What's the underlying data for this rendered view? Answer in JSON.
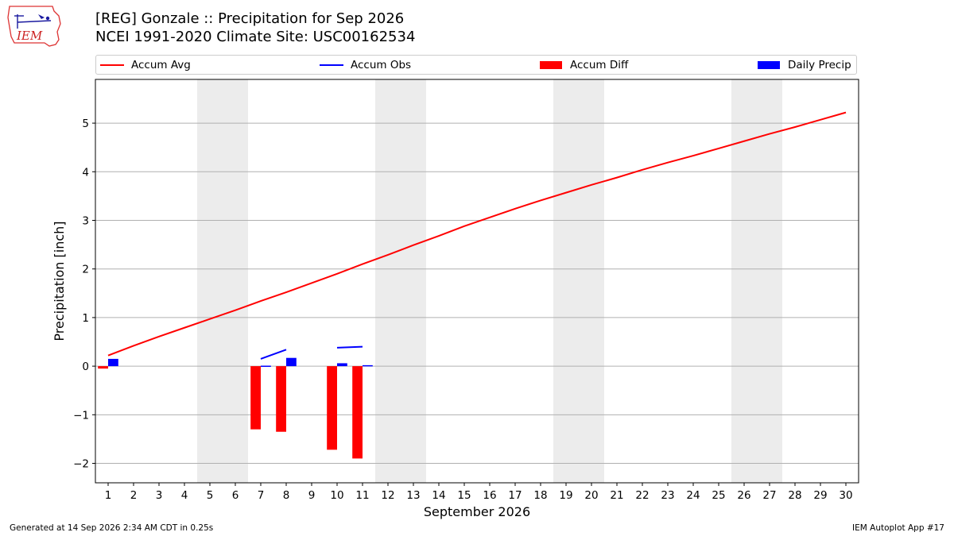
{
  "logo": {
    "text": "IEM"
  },
  "title_lines": [
    "[REG] Gonzale :: Precipitation for Sep 2026",
    "NCEI 1991-2020 Climate Site: USC00162534"
  ],
  "legend": [
    {
      "label": "Accum Avg",
      "kind": "line",
      "color": "#ff0000"
    },
    {
      "label": "Accum Obs",
      "kind": "line",
      "color": "#0000ff"
    },
    {
      "label": "Accum Diff",
      "kind": "box",
      "color": "#ff0000"
    },
    {
      "label": "Daily Precip",
      "kind": "box",
      "color": "#0000ff"
    }
  ],
  "footer": {
    "left": "Generated at 14 Sep 2026 2:34 AM CDT in 0.25s",
    "right": "IEM Autoplot App #17"
  },
  "chart_data": {
    "type": "bar",
    "xlabel": "September 2026",
    "ylabel": "Precipitation [inch]",
    "xlim": [
      0.5,
      30.5
    ],
    "ylim": [
      -2.4,
      5.9
    ],
    "yticks": [
      -2,
      -1,
      0,
      1,
      2,
      3,
      4,
      5
    ],
    "ytick_labels": [
      "−2",
      "−1",
      "0",
      "1",
      "2",
      "3",
      "4",
      "5"
    ],
    "grid": "horizontal",
    "days": [
      1,
      2,
      3,
      4,
      5,
      6,
      7,
      8,
      9,
      10,
      11,
      12,
      13,
      14,
      15,
      16,
      17,
      18,
      19,
      20,
      21,
      22,
      23,
      24,
      25,
      26,
      27,
      28,
      29,
      30
    ],
    "weekend_shading": [
      [
        5,
        6
      ],
      [
        12,
        13
      ],
      [
        19,
        20
      ],
      [
        26,
        27
      ]
    ],
    "shade_color": "#ececec",
    "accum_avg": [
      0.22,
      0.42,
      0.61,
      0.79,
      0.97,
      1.15,
      1.34,
      1.52,
      1.71,
      1.9,
      2.1,
      2.29,
      2.49,
      2.68,
      2.88,
      3.06,
      3.24,
      3.41,
      3.57,
      3.73,
      3.88,
      4.04,
      4.19,
      4.33,
      4.48,
      4.63,
      4.78,
      4.92,
      5.07,
      5.22
    ],
    "accum_obs_segments": [
      {
        "x": [
          7,
          8
        ],
        "y": [
          0.15,
          0.34
        ]
      },
      {
        "x": [
          10,
          11
        ],
        "y": [
          0.38,
          0.4
        ]
      }
    ],
    "accum_diff": [
      {
        "day": 1,
        "value": -0.05
      },
      {
        "day": 7,
        "value": -1.3
      },
      {
        "day": 8,
        "value": -1.35
      },
      {
        "day": 10,
        "value": -1.72
      },
      {
        "day": 11,
        "value": -1.9
      }
    ],
    "daily_precip": [
      {
        "day": 1,
        "value": 0.15
      },
      {
        "day": 7,
        "value": 0.01
      },
      {
        "day": 8,
        "value": 0.17
      },
      {
        "day": 10,
        "value": 0.06
      },
      {
        "day": 11,
        "value": 0.02
      }
    ],
    "colors": {
      "avg": "#ff0000",
      "obs": "#0000ff",
      "diff": "#ff0000",
      "precip": "#0000ff"
    }
  }
}
